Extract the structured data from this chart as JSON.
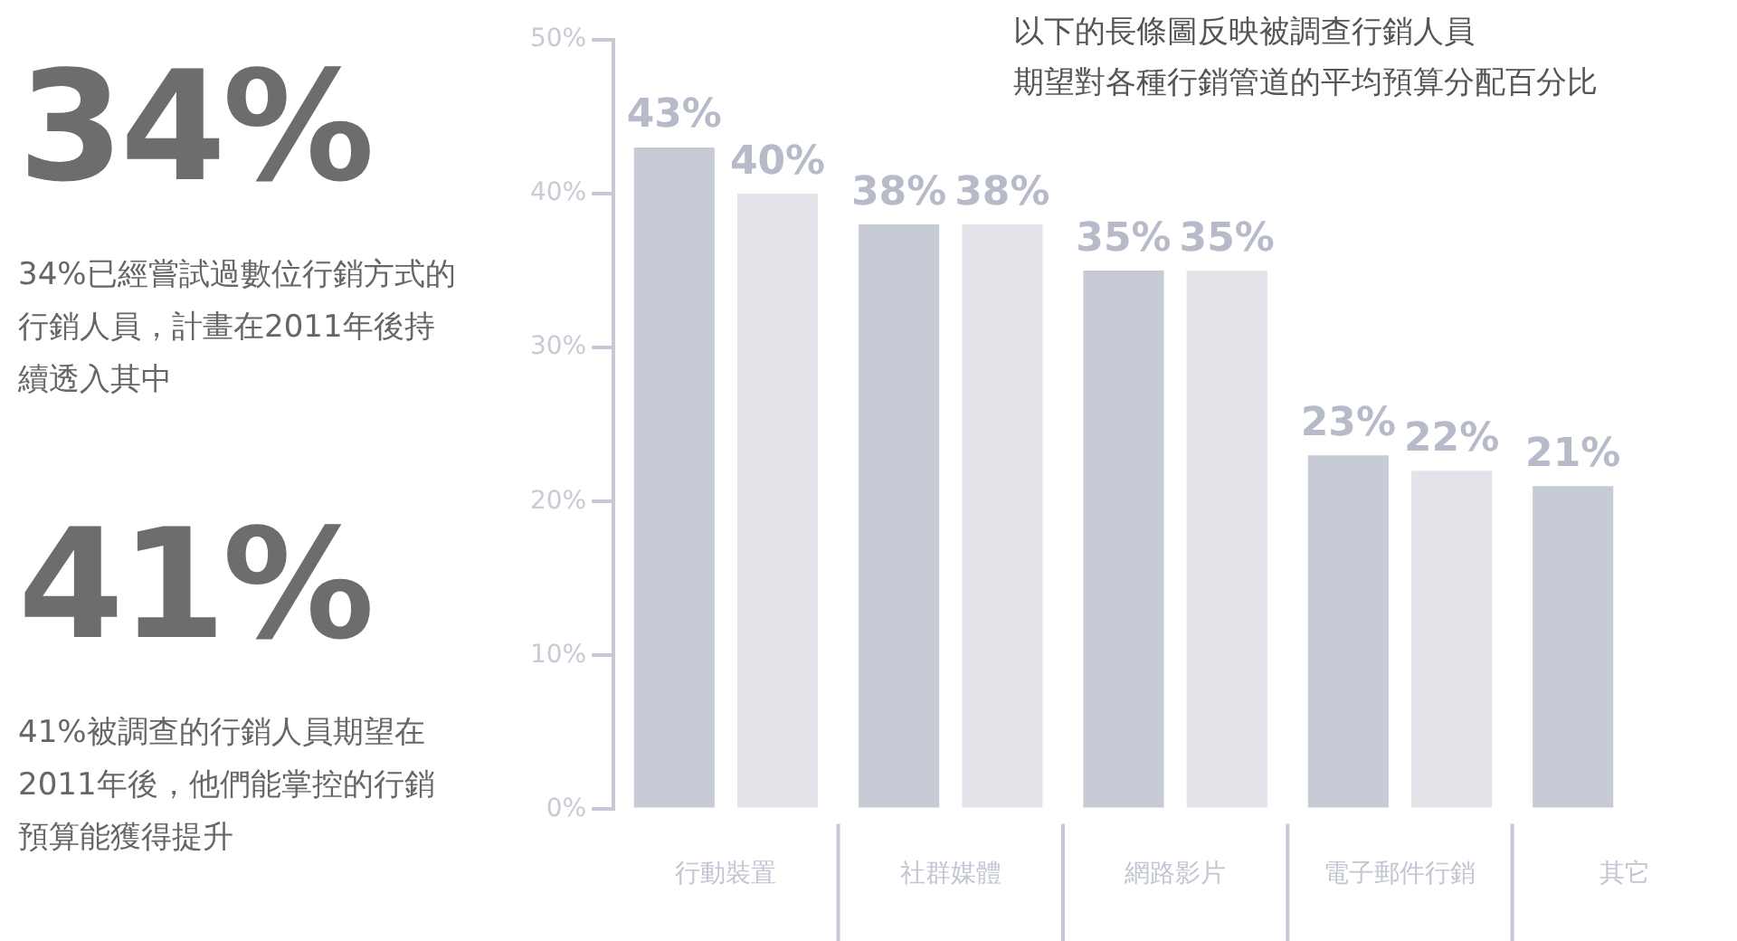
{
  "chart_data": {
    "type": "bar",
    "title": "以下的長條圖反映被調查行銷人員",
    "subtitle": "期望對各種行銷管道的平均預算分配百分比",
    "categories": [
      "行動裝置",
      "社群媒體",
      "網路影片",
      "電子郵件行銷",
      "其它"
    ],
    "series": [
      {
        "color": "#c7cbd6",
        "values": [
          43,
          38,
          35,
          23,
          21
        ],
        "value_labels": [
          "43%",
          "38%",
          "35%",
          "23%",
          "21%"
        ]
      },
      {
        "color": "#e3e4e9",
        "values": [
          40,
          38,
          35,
          22,
          null
        ],
        "value_labels": [
          "40%",
          "38%",
          "35%",
          "22%",
          null
        ]
      }
    ],
    "ylim": [
      0,
      50
    ],
    "yticks": [
      {
        "value": 0,
        "label": "0%"
      },
      {
        "value": 10,
        "label": "10%"
      },
      {
        "value": 20,
        "label": "20%"
      },
      {
        "value": 30,
        "label": "30%"
      },
      {
        "value": 40,
        "label": "40%"
      },
      {
        "value": 50,
        "label": "50%"
      }
    ],
    "grid": false,
    "legend": false,
    "annotations": [
      "34%",
      "34%已經嘗試過數位行銷方式的行銷人員，計畫在2011年後持續透入其中",
      "41%",
      "41%被調查的行銷人員期望在2011年後，他們能掌控的行銷預算能獲得提升"
    ]
  }
}
